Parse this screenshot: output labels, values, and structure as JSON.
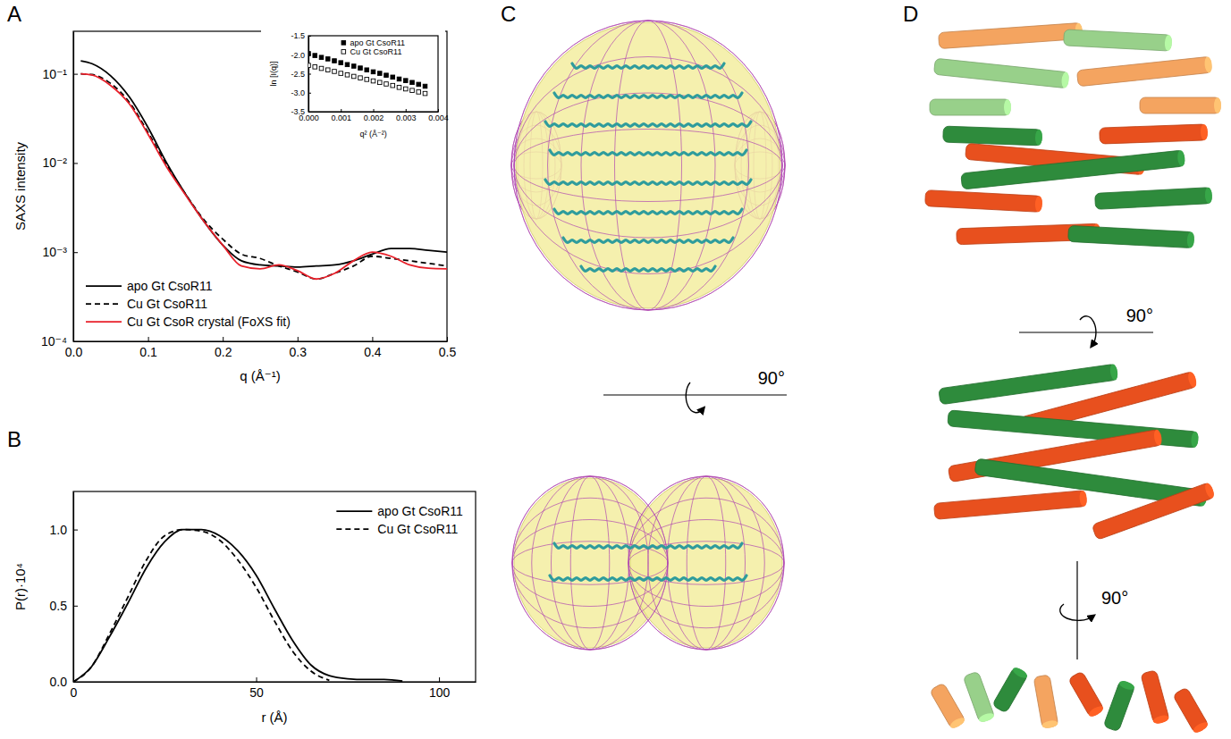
{
  "chart_data": [
    {
      "panel": "A",
      "type": "line",
      "x_label": "q (Å⁻¹)",
      "y_label": "SAXS intensity",
      "log": "y",
      "legend": "lower left",
      "xlim": [
        0,
        0.5
      ],
      "ylim": [
        0.0001,
        0.3
      ],
      "xticks": [
        {
          "value": 0,
          "label": "0.0"
        },
        0.1,
        0.2,
        0.3,
        0.4,
        0.5
      ],
      "yticks": [
        {
          "value": 0.0001,
          "label": "10⁻⁴"
        },
        {
          "value": 0.001,
          "label": "10⁻³"
        },
        {
          "value": 0.01,
          "label": "10⁻²"
        },
        {
          "value": 0.1,
          "label": "10⁻¹"
        }
      ],
      "x": [
        0.01,
        0.025,
        0.05,
        0.075,
        0.1,
        0.125,
        0.15,
        0.175,
        0.2,
        0.225,
        0.25,
        0.275,
        0.3,
        0.325,
        0.35,
        0.375,
        0.4,
        0.425,
        0.45,
        0.475,
        0.5
      ],
      "series": [
        {
          "name": "apo Gt CsoR11",
          "color": "#000000",
          "line_style": "solid",
          "values": [
            0.14,
            0.13,
            0.095,
            0.055,
            0.025,
            0.01,
            0.0045,
            0.0022,
            0.0012,
            0.0008,
            0.00072,
            0.0007,
            0.00068,
            0.0007,
            0.00072,
            0.0008,
            0.00095,
            0.0011,
            0.0011,
            0.00105,
            0.001
          ]
        },
        {
          "name": "Cu Gt CsoR11",
          "color": "#000000",
          "line_style": "dashed",
          "values": [
            0.1,
            0.098,
            0.078,
            0.048,
            0.022,
            0.0095,
            0.0045,
            0.0023,
            0.0014,
            0.00095,
            0.00085,
            0.0007,
            0.0006,
            0.0005,
            0.00058,
            0.0007,
            0.0009,
            0.00085,
            0.0008,
            0.00075,
            0.0007
          ]
        },
        {
          "name": "Cu Gt CsoR crystal (FoXS fit)",
          "color": "#e8202a",
          "line_style": "solid",
          "values": [
            0.1,
            0.097,
            0.074,
            0.046,
            0.021,
            0.009,
            0.0044,
            0.0022,
            0.0012,
            0.0007,
            0.00065,
            0.00072,
            0.00062,
            0.0005,
            0.00058,
            0.0008,
            0.001,
            0.0009,
            0.00072,
            0.00066,
            0.00065
          ]
        }
      ]
    },
    {
      "type": "scatter",
      "x_label": "q² (Å⁻²)",
      "y_label": "ln [I(q)]",
      "legend": "upper center",
      "xlim": [
        0,
        0.004
      ],
      "ylim": [
        -3.5,
        -1.5
      ],
      "xticks": [
        {
          "value": 0,
          "label": "0.000"
        },
        0.001,
        0.002,
        0.003,
        0.004
      ],
      "yticks": [
        -3.5,
        {
          "value": -3,
          "label": "-3.0"
        },
        -2.5,
        {
          "value": -2,
          "label": "-2.0"
        },
        -1.5
      ],
      "x": [
        0,
        0.0002,
        0.0004,
        0.0006,
        0.0008,
        0.001,
        0.0012,
        0.0014,
        0.0016,
        0.0018,
        0.002,
        0.0022,
        0.0024,
        0.0026,
        0.0028,
        0.003,
        0.0032,
        0.0034,
        0.0036
      ],
      "series": [
        {
          "name": "apo Gt CsoR11",
          "color": "#000000",
          "marker": "square-filled",
          "values": [
            -1.97,
            -2.02,
            -2.07,
            -2.11,
            -2.16,
            -2.21,
            -2.26,
            -2.3,
            -2.35,
            -2.4,
            -2.45,
            -2.49,
            -2.54,
            -2.59,
            -2.64,
            -2.68,
            -2.73,
            -2.78,
            -2.83
          ]
        },
        {
          "name": "Cu Gt CsoR11",
          "color": "#000000",
          "marker": "square-open",
          "values": [
            -2.28,
            -2.32,
            -2.36,
            -2.4,
            -2.44,
            -2.49,
            -2.53,
            -2.57,
            -2.61,
            -2.65,
            -2.69,
            -2.73,
            -2.77,
            -2.81,
            -2.86,
            -2.9,
            -2.94,
            -2.98,
            -3.02
          ]
        }
      ]
    },
    {
      "panel": "B",
      "type": "line",
      "x_label": "r (Å)",
      "y_label": "P(r)·10⁴",
      "legend": "upper right",
      "xlim": [
        0,
        110
      ],
      "ylim": [
        0,
        1.25
      ],
      "xticks": [
        0,
        50,
        100
      ],
      "yticks": [
        {
          "value": 0,
          "label": "0.0"
        },
        0.5,
        {
          "value": 1,
          "label": "1.0"
        }
      ],
      "x": [
        0,
        5,
        10,
        15,
        20,
        25,
        30,
        35,
        40,
        45,
        50,
        55,
        60,
        65,
        70,
        75,
        80,
        85,
        90,
        95
      ],
      "series": [
        {
          "name": "apo Gt CsoR11",
          "color": "#000000",
          "line_style": "solid",
          "values": [
            0,
            0.1,
            0.3,
            0.52,
            0.75,
            0.92,
            1.0,
            1.0,
            0.96,
            0.86,
            0.7,
            0.48,
            0.27,
            0.11,
            0.04,
            0.02,
            0.015,
            0.015,
            0.005,
            null
          ]
        },
        {
          "name": "Cu Gt CsoR11",
          "color": "#000000",
          "line_style": "dashed",
          "values": [
            0,
            0.1,
            0.32,
            0.56,
            0.8,
            0.96,
            1.0,
            0.99,
            0.93,
            0.8,
            0.62,
            0.4,
            0.2,
            0.07,
            0.01,
            null,
            null,
            null,
            null,
            null
          ]
        }
      ]
    }
  ],
  "panels": [
    {
      "panel": "C",
      "annotations": [
        "90°"
      ]
    },
    {
      "panel": "D",
      "annotations": [
        "90°",
        "90°"
      ]
    }
  ]
}
